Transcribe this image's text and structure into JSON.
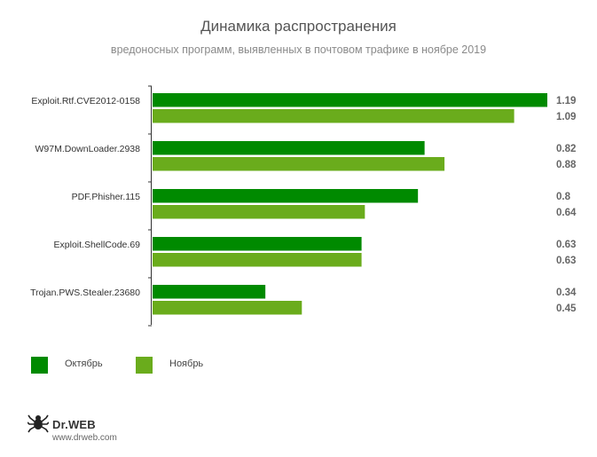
{
  "header": {
    "title": "Динамика распространения",
    "subtitle": "вредоносных программ, выявленных в почтовом трафике в ноябре 2019"
  },
  "chart_data": {
    "type": "bar",
    "orientation": "horizontal",
    "title": "Динамика распространения",
    "subtitle": "вредоносных программ, выявленных в почтовом трафике в ноябре 2019",
    "categories": [
      "Exploit.Rtf.CVE2012-0158",
      "W97M.DownLoader.2938",
      "PDF.Phisher.115",
      "Exploit.ShellCode.69",
      "Trojan.PWS.Stealer.23680"
    ],
    "series": [
      {
        "name": "Октябрь",
        "color": "#008a00",
        "values": [
          1.19,
          0.82,
          0.8,
          0.63,
          0.34
        ]
      },
      {
        "name": "Ноябрь",
        "color": "#6aac1c",
        "values": [
          1.09,
          0.88,
          0.64,
          0.63,
          0.45
        ]
      }
    ],
    "value_labels": [
      [
        "1.19",
        "1.09"
      ],
      [
        "0.82",
        "0.88"
      ],
      [
        "0.8",
        "0.64"
      ],
      [
        "0.63",
        "0.63"
      ],
      [
        "0.34",
        "0.45"
      ]
    ],
    "xlim": [
      0,
      1.19
    ],
    "grid": false,
    "legend": "bottom-left"
  },
  "legend": {
    "items": [
      {
        "label": "Октябрь",
        "color": "#008a00"
      },
      {
        "label": "Ноябрь",
        "color": "#6aac1c"
      }
    ]
  },
  "brand": {
    "logo_text": "Dr.WEB",
    "url": "www.drweb.com",
    "logo_icon": "spider-icon"
  }
}
